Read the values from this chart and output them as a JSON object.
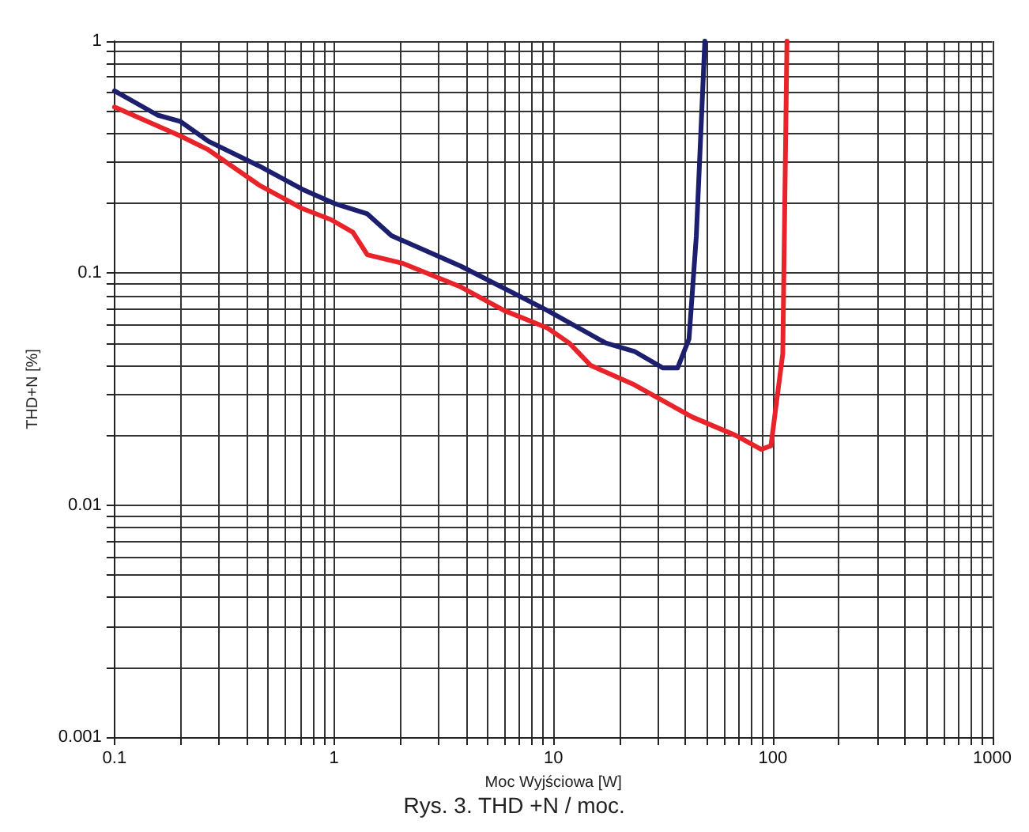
{
  "chart_data": {
    "type": "line",
    "xlabel": "Moc Wyjściowa [W]",
    "ylabel": "THD+N [%]",
    "annotations": [
      "Rys. 3. THD +N / moc."
    ],
    "log": "xy",
    "grid": true,
    "xlim": [
      0.1,
      1000
    ],
    "ylim": [
      0.001,
      1
    ],
    "xticks": [
      0.1,
      {
        "value": 0.2,
        "label": null
      },
      {
        "value": 0.3,
        "label": null
      },
      {
        "value": 0.4,
        "label": null
      },
      {
        "value": 0.5,
        "label": null
      },
      {
        "value": 0.6,
        "label": null
      },
      {
        "value": 0.7,
        "label": null
      },
      {
        "value": 0.8,
        "label": null
      },
      {
        "value": 0.9,
        "label": null
      },
      1,
      {
        "value": 2,
        "label": null
      },
      {
        "value": 3,
        "label": null
      },
      {
        "value": 4,
        "label": null
      },
      {
        "value": 5,
        "label": null
      },
      {
        "value": 6,
        "label": null
      },
      {
        "value": 7,
        "label": null
      },
      {
        "value": 8,
        "label": null
      },
      {
        "value": 9,
        "label": null
      },
      10,
      {
        "value": 20,
        "label": null
      },
      {
        "value": 30,
        "label": null
      },
      {
        "value": 40,
        "label": null
      },
      {
        "value": 50,
        "label": null
      },
      {
        "value": 60,
        "label": null
      },
      {
        "value": 70,
        "label": null
      },
      {
        "value": 80,
        "label": null
      },
      {
        "value": 90,
        "label": null
      },
      100,
      {
        "value": 200,
        "label": null
      },
      {
        "value": 300,
        "label": null
      },
      {
        "value": 400,
        "label": null
      },
      {
        "value": 500,
        "label": null
      },
      {
        "value": 600,
        "label": null
      },
      {
        "value": 700,
        "label": null
      },
      {
        "value": 800,
        "label": null
      },
      {
        "value": 900,
        "label": null
      },
      1000
    ],
    "yticks": [
      0.001,
      {
        "value": 0.002,
        "label": null
      },
      {
        "value": 0.003,
        "label": null
      },
      {
        "value": 0.004,
        "label": null
      },
      {
        "value": 0.005,
        "label": null
      },
      {
        "value": 0.006,
        "label": null
      },
      {
        "value": 0.007,
        "label": null
      },
      {
        "value": 0.008,
        "label": null
      },
      {
        "value": 0.009,
        "label": null
      },
      0.01,
      {
        "value": 0.02,
        "label": null
      },
      {
        "value": 0.03,
        "label": null
      },
      {
        "value": 0.04,
        "label": null
      },
      {
        "value": 0.05,
        "label": null
      },
      {
        "value": 0.06,
        "label": null
      },
      {
        "value": 0.07,
        "label": null
      },
      {
        "value": 0.08,
        "label": null
      },
      {
        "value": 0.09,
        "label": null
      },
      0.1,
      {
        "value": 0.2,
        "label": null
      },
      {
        "value": 0.3,
        "label": null
      },
      {
        "value": 0.4,
        "label": null
      },
      {
        "value": 0.5,
        "label": null
      },
      {
        "value": 0.6,
        "label": null
      },
      {
        "value": 0.7,
        "label": null
      },
      {
        "value": 0.8,
        "label": null
      },
      {
        "value": 0.9,
        "label": null
      },
      1
    ],
    "series": [
      {
        "color": "#1c1f6e",
        "x": [
          0.1,
          0.157,
          0.2,
          0.268,
          0.455,
          0.716,
          1.0,
          1.42,
          1.83,
          3.8,
          9.4,
          17.3,
          23.4,
          31.6,
          36.8,
          41.5,
          44.8,
          49
        ],
        "values": [
          0.61,
          0.48,
          0.45,
          0.37,
          0.29,
          0.23,
          0.2,
          0.18,
          0.145,
          0.107,
          0.069,
          0.05,
          0.046,
          0.039,
          0.039,
          0.052,
          0.144,
          1
        ]
      },
      {
        "color": "#e8232a",
        "x": [
          0.1,
          0.2,
          0.268,
          0.455,
          0.716,
          0.97,
          1.22,
          1.42,
          2.07,
          3.8,
          5.97,
          9.4,
          11.8,
          14.8,
          23.4,
          42.8,
          67.5,
          88.5,
          98,
          111,
          116
        ],
        "values": [
          0.52,
          0.39,
          0.34,
          0.24,
          0.19,
          0.17,
          0.15,
          0.12,
          0.11,
          0.087,
          0.069,
          0.058,
          0.05,
          0.04,
          0.033,
          0.024,
          0.02,
          0.0174,
          0.018,
          0.045,
          1
        ]
      }
    ]
  }
}
